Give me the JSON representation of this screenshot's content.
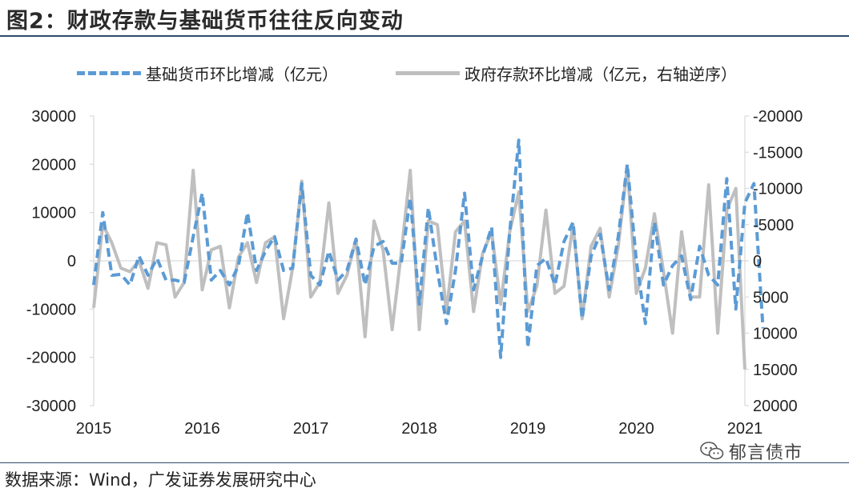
{
  "title": "图2：财政存款与基础货币往往反向变动",
  "legend": [
    {
      "label": "基础货币环比增减（亿元）",
      "style": "dashed",
      "color": "#5b9bd5"
    },
    {
      "label": "政府存款环比增减（亿元，右轴逆序）",
      "style": "solid",
      "color": "#bfbfbf"
    }
  ],
  "source": "数据来源：Wind，广发证券发展研究中心",
  "watermark": {
    "text": "郁言债市",
    "icon": "wechat-icon"
  },
  "chart_data": {
    "type": "line",
    "x_ticks": [
      "2015",
      "2016",
      "2017",
      "2018",
      "2019",
      "2020",
      "2021"
    ],
    "x_start": "2015-01",
    "x_end": "2021-01",
    "y_left": {
      "lim": [
        -30000,
        30000
      ],
      "ticks": [
        "30000",
        "20000",
        "10000",
        "0",
        "-10000",
        "-20000",
        "-30000"
      ],
      "tick_values": [
        30000,
        20000,
        10000,
        0,
        -10000,
        -20000,
        -30000
      ]
    },
    "y_right": {
      "lim": [
        -20000,
        20000
      ],
      "reversed": true,
      "ticks": [
        "-20000",
        "-15000",
        "-10000",
        "-5000",
        "0",
        "5000",
        "10000",
        "15000",
        "20000"
      ],
      "tick_values": [
        -20000,
        -15000,
        -10000,
        -5000,
        0,
        5000,
        10000,
        15000,
        20000
      ]
    },
    "grid": false,
    "legend_position": "top",
    "series": [
      {
        "name": "基础货币环比增减（亿元）",
        "axis": "left",
        "color": "#5b9bd5",
        "values": [
          [
            "2015-01",
            -5000
          ],
          [
            "2015-02",
            10000
          ],
          [
            "2015-03",
            -3000
          ],
          [
            "2015-04",
            -2800
          ],
          [
            "2015-05",
            -5000
          ],
          [
            "2015-06",
            1000
          ],
          [
            "2015-07",
            -3000
          ],
          [
            "2015-08",
            500
          ],
          [
            "2015-09",
            -4000
          ],
          [
            "2015-10",
            -4000
          ],
          [
            "2015-11",
            -4500
          ],
          [
            "2015-12",
            5000
          ],
          [
            "2016-01",
            14000
          ],
          [
            "2016-02",
            -4000
          ],
          [
            "2016-03",
            -2000
          ],
          [
            "2016-04",
            -5000
          ],
          [
            "2016-05",
            -1000
          ],
          [
            "2016-06",
            10000
          ],
          [
            "2016-07",
            -2000
          ],
          [
            "2016-08",
            2000
          ],
          [
            "2016-09",
            5000
          ],
          [
            "2016-10",
            -2000
          ],
          [
            "2016-11",
            -1500
          ],
          [
            "2016-12",
            16000
          ],
          [
            "2017-01",
            -3000
          ],
          [
            "2017-02",
            -5000
          ],
          [
            "2017-03",
            2000
          ],
          [
            "2017-04",
            -4000
          ],
          [
            "2017-05",
            -2000
          ],
          [
            "2017-06",
            4500
          ],
          [
            "2017-07",
            -5000
          ],
          [
            "2017-08",
            3000
          ],
          [
            "2017-09",
            4000
          ],
          [
            "2017-10",
            -500
          ],
          [
            "2017-11",
            -500
          ],
          [
            "2017-12",
            13000
          ],
          [
            "2018-01",
            -9000
          ],
          [
            "2018-02",
            11000
          ],
          [
            "2018-03",
            -2000
          ],
          [
            "2018-04",
            -13000
          ],
          [
            "2018-05",
            -2000
          ],
          [
            "2018-06",
            14000
          ],
          [
            "2018-07",
            -6000
          ],
          [
            "2018-08",
            1000
          ],
          [
            "2018-09",
            7000
          ],
          [
            "2018-10",
            -20000
          ],
          [
            "2018-11",
            6000
          ],
          [
            "2018-12",
            25000
          ],
          [
            "2019-01",
            -18000
          ],
          [
            "2019-02",
            -1000
          ],
          [
            "2019-03",
            500
          ],
          [
            "2019-04",
            -5000
          ],
          [
            "2019-05",
            4000
          ],
          [
            "2019-06",
            8000
          ],
          [
            "2019-07",
            -12000
          ],
          [
            "2019-08",
            1000
          ],
          [
            "2019-09",
            5500
          ],
          [
            "2019-10",
            -6000
          ],
          [
            "2019-11",
            5000
          ],
          [
            "2019-12",
            20000
          ],
          [
            "2020-01",
            0
          ],
          [
            "2020-02",
            -13000
          ],
          [
            "2020-03",
            8000
          ],
          [
            "2020-04",
            -5000
          ],
          [
            "2020-05",
            -1000
          ],
          [
            "2020-06",
            1000
          ],
          [
            "2020-07",
            -8000
          ],
          [
            "2020-08",
            3000
          ],
          [
            "2020-09",
            -3000
          ],
          [
            "2020-10",
            -5000
          ],
          [
            "2020-11",
            17000
          ],
          [
            "2020-12",
            -10000
          ],
          [
            "2021-01",
            12000
          ],
          [
            "2021-02",
            16000
          ],
          [
            "2021-03",
            -14000
          ]
        ]
      },
      {
        "name": "政府存款环比增减（亿元，右轴逆序）",
        "axis": "right",
        "color": "#bfbfbf",
        "values": [
          [
            "2015-01",
            6500
          ],
          [
            "2015-02",
            -5000
          ],
          [
            "2015-03",
            -2500
          ],
          [
            "2015-04",
            1000
          ],
          [
            "2015-05",
            1500
          ],
          [
            "2015-06",
            0
          ],
          [
            "2015-07",
            3800
          ],
          [
            "2015-08",
            -2500
          ],
          [
            "2015-09",
            -2200
          ],
          [
            "2015-10",
            5000
          ],
          [
            "2015-11",
            3000
          ],
          [
            "2015-12",
            -12500
          ],
          [
            "2016-01",
            4000
          ],
          [
            "2016-02",
            -1500
          ],
          [
            "2016-03",
            -2000
          ],
          [
            "2016-04",
            6500
          ],
          [
            "2016-05",
            -500
          ],
          [
            "2016-06",
            -2500
          ],
          [
            "2016-07",
            3000
          ],
          [
            "2016-08",
            -2500
          ],
          [
            "2016-09",
            -3300
          ],
          [
            "2016-10",
            8000
          ],
          [
            "2016-11",
            1000
          ],
          [
            "2016-12",
            -11000
          ],
          [
            "2017-01",
            5000
          ],
          [
            "2017-02",
            3000
          ],
          [
            "2017-03",
            -8000
          ],
          [
            "2017-04",
            4500
          ],
          [
            "2017-05",
            2000
          ],
          [
            "2017-06",
            -3000
          ],
          [
            "2017-07",
            10500
          ],
          [
            "2017-08",
            -5500
          ],
          [
            "2017-09",
            -1500
          ],
          [
            "2017-10",
            9500
          ],
          [
            "2017-11",
            -1000
          ],
          [
            "2017-12",
            -12500
          ],
          [
            "2018-01",
            9500
          ],
          [
            "2018-02",
            -5500
          ],
          [
            "2018-03",
            -5000
          ],
          [
            "2018-04",
            7000
          ],
          [
            "2018-05",
            -4000
          ],
          [
            "2018-06",
            -5500
          ],
          [
            "2018-07",
            7000
          ],
          [
            "2018-08",
            -1000
          ],
          [
            "2018-09",
            -4000
          ],
          [
            "2018-10",
            6000
          ],
          [
            "2018-11",
            -4000
          ],
          [
            "2018-12",
            -9500
          ],
          [
            "2019-01",
            7000
          ],
          [
            "2019-02",
            3500
          ],
          [
            "2019-03",
            -7000
          ],
          [
            "2019-04",
            4500
          ],
          [
            "2019-05",
            3500
          ],
          [
            "2019-06",
            -5000
          ],
          [
            "2019-07",
            8000
          ],
          [
            "2019-08",
            -2000
          ],
          [
            "2019-09",
            -4500
          ],
          [
            "2019-10",
            5000
          ],
          [
            "2019-11",
            -2000
          ],
          [
            "2019-12",
            -13000
          ],
          [
            "2020-01",
            4500
          ],
          [
            "2020-02",
            1000
          ],
          [
            "2020-03",
            -6500
          ],
          [
            "2020-04",
            1500
          ],
          [
            "2020-05",
            10000
          ],
          [
            "2020-06",
            -4000
          ],
          [
            "2020-07",
            5000
          ],
          [
            "2020-08",
            5000
          ],
          [
            "2020-09",
            -10500
          ],
          [
            "2020-10",
            10000
          ],
          [
            "2020-11",
            -7000
          ],
          [
            "2020-12",
            -10000
          ],
          [
            "2021-01",
            15000
          ]
        ]
      }
    ]
  }
}
